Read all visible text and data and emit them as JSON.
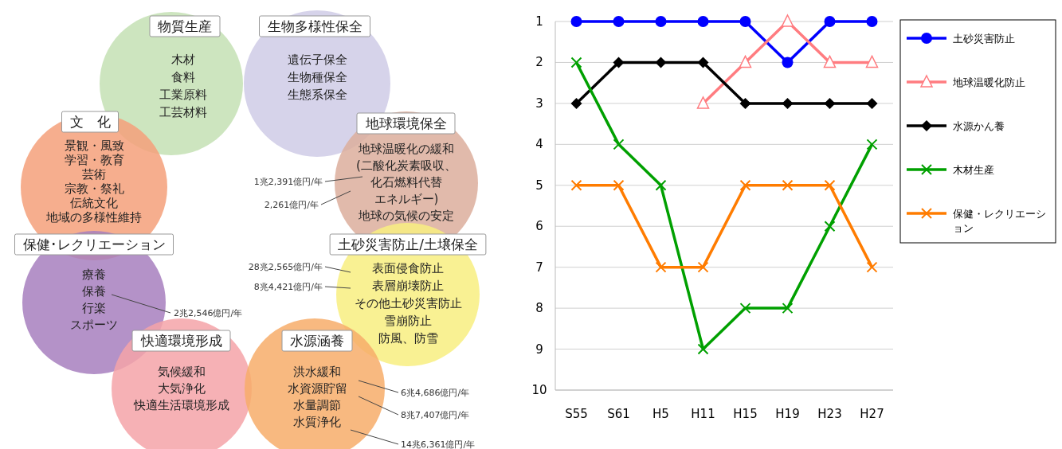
{
  "chart_data": [
    {
      "type": "other",
      "annotations": [
        "物質生産",
        "木材",
        "食料",
        "工業原料",
        "工芸材料",
        "生物多様性保全",
        "遺伝子保全",
        "生物種保全",
        "生態系保全",
        "文　化",
        "景観・風致",
        "学習・教育",
        "芸術",
        "宗教・祭礼",
        "伝統文化",
        "地域の多様性維持",
        "地球環境保全",
        "地球温暖化の緩和",
        "(二酸化炭素吸収、",
        "化石燃料代替",
        "エネルギー)",
        "地球の気候の安定",
        "保健･レクリエーション",
        "療養",
        "保養",
        "行楽",
        "スポーツ",
        "土砂災害防止/土壌保全",
        "表面侵食防止",
        "表層崩壊防止",
        "その他土砂災害防止",
        "雪崩防止",
        "防風、防雪",
        "快適環境形成",
        "気候緩和",
        "大気浄化",
        "快適生活環境形成",
        "水源涵養",
        "洪水緩和",
        "水資源貯留",
        "水量調節",
        "水質浄化",
        "1兆2,391億円/年",
        "2,261億円/年",
        "28兆2,565億円/年",
        "8兆4,421億円/年",
        "2兆2,546億円/年",
        "6兆4,686億円/年",
        "8兆7,407億円/年",
        "14兆6,361億円/年"
      ]
    },
    {
      "type": "line",
      "categories": [
        "S55",
        "S61",
        "H5",
        "H11",
        "H15",
        "H19",
        "H23",
        "H27"
      ],
      "ylim": [
        10,
        1
      ],
      "yticks": [
        1,
        2,
        3,
        4,
        5,
        6,
        7,
        8,
        9,
        10
      ],
      "grid": "y",
      "legend": "right",
      "series": [
        {
          "name": "土砂災害防止",
          "color": "#0000ff",
          "marker": "circle",
          "values": [
            1,
            1,
            1,
            1,
            1,
            2,
            1,
            1
          ]
        },
        {
          "name": "地球温暖化防止",
          "color": "#ff7c80",
          "marker": "triangle",
          "values": [
            null,
            null,
            null,
            3,
            2,
            1,
            2,
            2
          ]
        },
        {
          "name": "水源かん養",
          "color": "#000000",
          "marker": "diamond",
          "values": [
            3,
            2,
            2,
            2,
            3,
            3,
            3,
            3
          ]
        },
        {
          "name": "木材生産",
          "color": "#00a000",
          "marker": "cross",
          "values": [
            2,
            4,
            5,
            9,
            8,
            8,
            6,
            4
          ]
        },
        {
          "name": "保健・レクリエーション",
          "color": "#ff7c00",
          "marker": "cross",
          "values": [
            5,
            5,
            7,
            7,
            5,
            5,
            5,
            7
          ]
        }
      ]
    }
  ]
}
